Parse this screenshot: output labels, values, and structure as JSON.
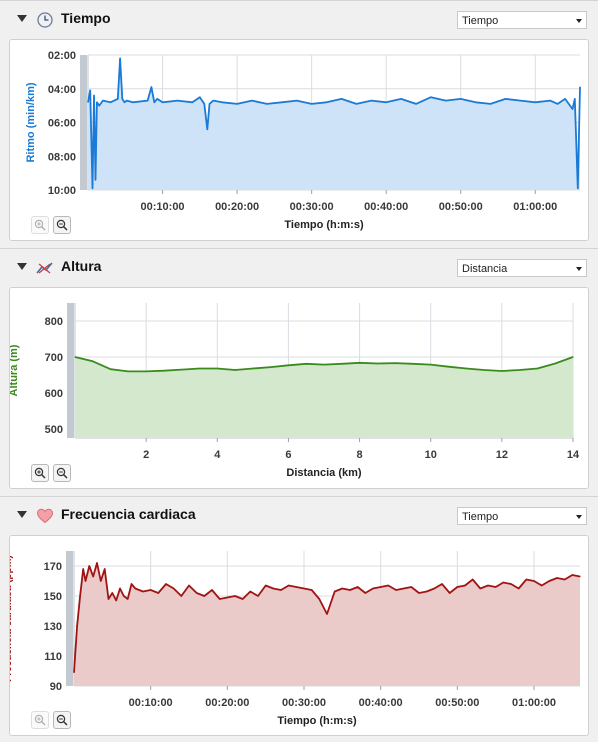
{
  "panels": [
    {
      "title": "Tiempo",
      "select": "Tiempo",
      "icon": "clock-icon"
    },
    {
      "title": "Altura",
      "select": "Distancia",
      "icon": "elevation-icon"
    },
    {
      "title": "Frecuencia cardiaca",
      "select": "Tiempo",
      "icon": "heart-icon"
    }
  ],
  "colors": {
    "pace": "#1a7ad6",
    "pace_fill": "#cfe3f8",
    "altitude": "#3a8a1c",
    "altitude_fill": "#d3e8cc",
    "heart": "#a01414",
    "heart_fill": "#ebcaca"
  },
  "chart_data": [
    {
      "type": "area",
      "ylabel": "Ritmo (min/km)",
      "xlabel": "Tiempo (h:m:s)",
      "y_ticks": [
        "02:00",
        "04:00",
        "06:00",
        "08:00",
        "10:00"
      ],
      "x_ticks": [
        "00:10:00",
        "00:20:00",
        "00:30:00",
        "00:40:00",
        "00:50:00",
        "01:00:00"
      ],
      "ylim": [
        2,
        10
      ],
      "y_inverted": true,
      "xlim_min": [
        0,
        66
      ],
      "x_tick_values_min": [
        10,
        20,
        30,
        40,
        50,
        60
      ],
      "grid": true,
      "x_min": [
        0,
        0.3,
        0.6,
        0.8,
        1.0,
        1.2,
        1.5,
        2,
        3,
        4,
        4.3,
        4.6,
        4.9,
        5.2,
        6,
        8,
        8.5,
        8.9,
        9.3,
        10,
        12,
        14,
        15,
        15.6,
        16,
        16.3,
        16.8,
        18,
        20,
        22,
        24,
        26,
        28,
        30,
        32,
        34,
        36,
        38,
        40,
        42,
        44,
        46,
        48,
        50,
        52,
        54,
        56,
        58,
        60,
        62,
        63,
        64,
        65,
        65.3,
        65.7,
        66
      ],
      "y_pace": [
        4.8,
        4.1,
        9.9,
        4.4,
        9.4,
        4.8,
        5.0,
        4.7,
        4.8,
        4.6,
        2.2,
        4.6,
        4.8,
        4.7,
        4.8,
        4.7,
        3.9,
        4.8,
        4.6,
        4.8,
        4.7,
        4.8,
        4.5,
        4.9,
        6.4,
        4.9,
        4.7,
        4.8,
        4.9,
        4.7,
        4.9,
        4.8,
        4.7,
        4.9,
        4.8,
        4.6,
        4.9,
        4.7,
        4.8,
        4.6,
        4.9,
        4.5,
        4.7,
        4.6,
        4.8,
        4.9,
        4.6,
        4.7,
        4.8,
        4.7,
        4.9,
        4.6,
        5.2,
        4.6,
        9.9,
        3.9
      ]
    },
    {
      "type": "area",
      "ylabel": "Altura (m)",
      "xlabel": "Distancia (km)",
      "y_ticks": [
        "800",
        "700",
        "600",
        "500"
      ],
      "x_ticks": [
        "2",
        "4",
        "6",
        "8",
        "10",
        "12",
        "14"
      ],
      "ylim": [
        475,
        850
      ],
      "xlim": [
        0,
        14
      ],
      "grid": true,
      "x": [
        0,
        0.5,
        1,
        1.5,
        2,
        2.5,
        3,
        3.5,
        4,
        4.5,
        5,
        5.5,
        6,
        6.5,
        7,
        7.5,
        8,
        8.5,
        9,
        9.5,
        10,
        10.5,
        11,
        11.5,
        12,
        12.5,
        13,
        13.5,
        14
      ],
      "y": [
        700,
        688,
        666,
        660,
        660,
        662,
        665,
        668,
        668,
        664,
        668,
        672,
        677,
        681,
        679,
        681,
        684,
        682,
        683,
        681,
        679,
        673,
        668,
        664,
        661,
        664,
        668,
        682,
        700
      ]
    },
    {
      "type": "area",
      "ylabel": "Frecuencia cardiaca (ppm)",
      "xlabel": "Tiempo (h:m:s)",
      "y_ticks": [
        "170",
        "150",
        "130",
        "110",
        "90"
      ],
      "x_ticks": [
        "00:10:00",
        "00:20:00",
        "00:30:00",
        "00:40:00",
        "00:50:00",
        "01:00:00"
      ],
      "ylim": [
        90,
        180
      ],
      "xlim_min": [
        0,
        66
      ],
      "x_tick_values_min": [
        10,
        20,
        30,
        40,
        50,
        60
      ],
      "grid": true,
      "x_min": [
        0,
        0.4,
        0.8,
        1.2,
        1.5,
        2,
        2.5,
        3,
        3.5,
        4,
        4.5,
        5,
        5.5,
        6,
        6.5,
        7,
        7.5,
        8,
        9,
        10,
        11,
        12,
        13,
        14,
        15,
        16,
        17,
        18,
        19,
        20,
        21,
        22,
        23,
        24,
        25,
        26,
        27,
        28,
        29,
        30,
        31,
        32,
        33,
        34,
        35,
        36,
        37,
        38,
        39,
        40,
        41,
        42,
        43,
        44,
        45,
        46,
        47,
        48,
        49,
        50,
        51,
        52,
        53,
        54,
        55,
        56,
        57,
        58,
        59,
        60,
        61,
        62,
        63,
        64,
        65,
        66
      ],
      "y": [
        99,
        130,
        150,
        168,
        160,
        170,
        163,
        172,
        160,
        168,
        148,
        152,
        147,
        155,
        150,
        148,
        158,
        155,
        153,
        154,
        152,
        158,
        155,
        150,
        157,
        152,
        150,
        154,
        148,
        149,
        150,
        148,
        153,
        150,
        157,
        155,
        154,
        157,
        156,
        155,
        154,
        148,
        138,
        153,
        155,
        154,
        156,
        152,
        155,
        156,
        157,
        154,
        155,
        156,
        152,
        153,
        155,
        158,
        152,
        156,
        157,
        161,
        155,
        157,
        156,
        159,
        158,
        155,
        161,
        160,
        157,
        160,
        162,
        161,
        164,
        163
      ]
    }
  ]
}
